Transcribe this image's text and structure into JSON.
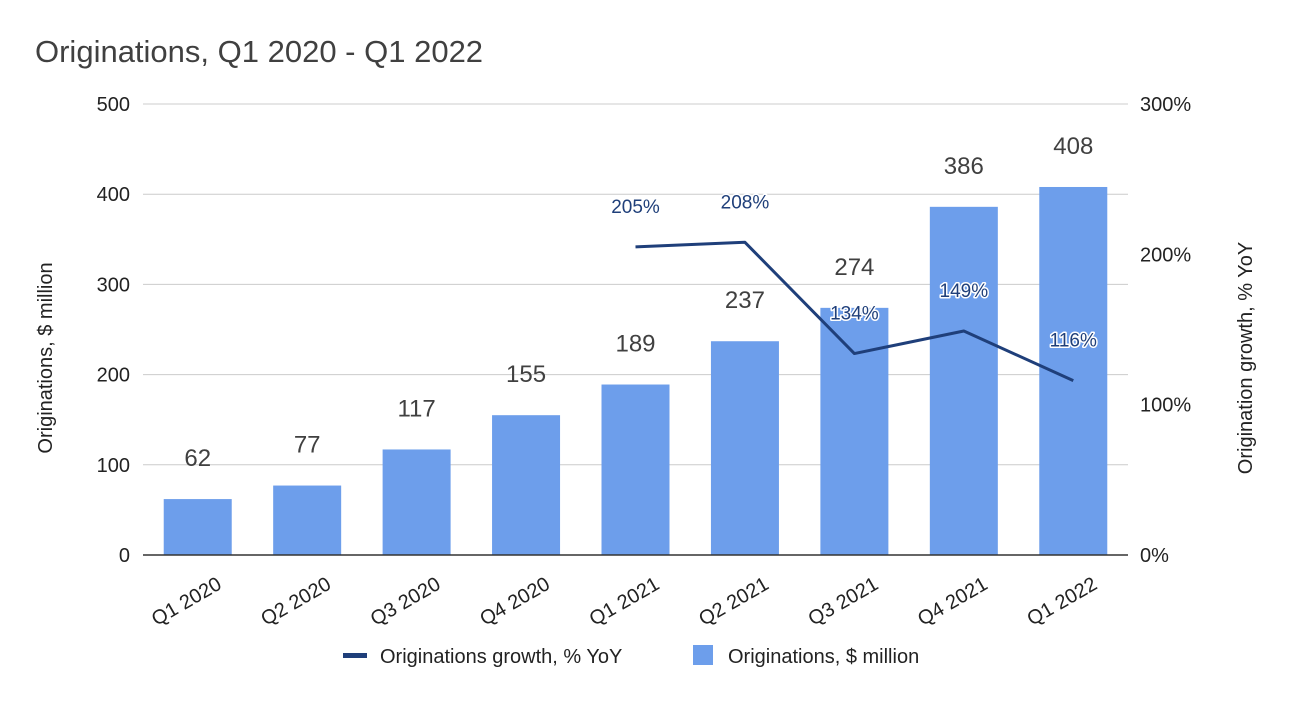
{
  "chart_data": {
    "type": "bar",
    "title": "Originations, Q1 2020 - Q1 2022",
    "categories": [
      "Q1 2020",
      "Q2 2020",
      "Q3 2020",
      "Q4 2020",
      "Q1 2021",
      "Q2 2021",
      "Q3 2021",
      "Q4 2021",
      "Q1 2022"
    ],
    "series": [
      {
        "name": "Originations, $ million",
        "type": "bar",
        "axis": "left",
        "color": "#6d9eeb",
        "values": [
          62,
          77,
          117,
          155,
          189,
          237,
          274,
          386,
          408
        ],
        "labels": [
          "62",
          "77",
          "117",
          "155",
          "189",
          "237",
          "274",
          "386",
          "408"
        ]
      },
      {
        "name": "Originations growth, % YoY",
        "type": "line",
        "axis": "right",
        "color": "#1f3f7a",
        "values": [
          null,
          null,
          null,
          null,
          205,
          208,
          134,
          149,
          116
        ],
        "labels": [
          "",
          "",
          "",
          "",
          "205%",
          "208%",
          "134%",
          "149%",
          "116%"
        ]
      }
    ],
    "ylabel": "Originations, $ million",
    "ylim": [
      0,
      500
    ],
    "yticks": [
      "0",
      "100",
      "200",
      "300",
      "400",
      "500"
    ],
    "y2label": "Origination growth, % YoY",
    "y2lim": [
      0,
      300
    ],
    "y2ticks": [
      "0%",
      "100%",
      "200%",
      "300%"
    ],
    "grid": true,
    "legend_position": "bottom-center",
    "legend": [
      "Originations growth, % YoY",
      "Originations, $ million"
    ]
  }
}
